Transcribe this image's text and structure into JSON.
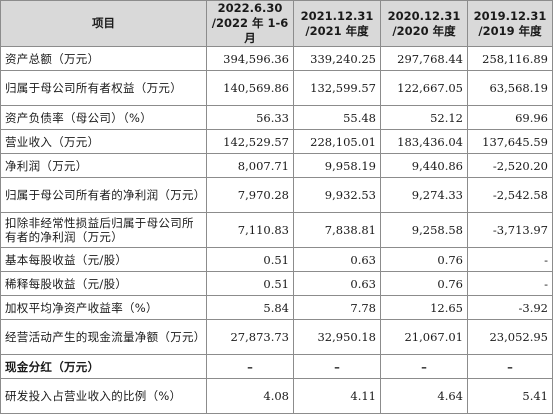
{
  "table": {
    "headers": [
      {
        "line1": "项目",
        "line2": ""
      },
      {
        "line1": "2022.6.30",
        "line2": "/2022 年 1-6 月"
      },
      {
        "line1": "2021.12.31",
        "line2": "/2021 年度"
      },
      {
        "line1": "2020.12.31",
        "line2": "/2020 年度"
      },
      {
        "line1": "2019.12.31",
        "line2": "/2019 年度"
      }
    ],
    "rows": [
      {
        "label": "资产总额（万元）",
        "values": [
          "394,596.36",
          "339,240.25",
          "297,768.44",
          "258,116.89"
        ]
      },
      {
        "label": "归属于母公司所有者权益（万元）",
        "values": [
          "140,569.86",
          "132,599.57",
          "122,667.05",
          "63,568.19"
        ]
      },
      {
        "label": "资产负债率（母公司）（%）",
        "values": [
          "56.33",
          "55.48",
          "52.12",
          "69.96"
        ]
      },
      {
        "label": "营业收入（万元）",
        "values": [
          "142,529.57",
          "228,105.01",
          "183,436.04",
          "137,645.59"
        ]
      },
      {
        "label": "净利润（万元）",
        "values": [
          "8,007.71",
          "9,958.19",
          "9,440.86",
          "-2,520.20"
        ]
      },
      {
        "label": "归属于母公司所有者的净利润（万元）",
        "values": [
          "7,970.28",
          "9,932.53",
          "9,274.33",
          "-2,542.58"
        ]
      },
      {
        "label": "扣除非经常性损益后归属于母公司所有者的净利润（万元）",
        "values": [
          "7,110.83",
          "7,838.81",
          "9,258.58",
          "-3,713.97"
        ]
      },
      {
        "label": "基本每股收益（元/股）",
        "values": [
          "0.51",
          "0.63",
          "0.76",
          "-"
        ]
      },
      {
        "label": "稀释每股收益（元/股）",
        "values": [
          "0.51",
          "0.63",
          "0.76",
          "-"
        ]
      },
      {
        "label": "加权平均净资产收益率（%）",
        "values": [
          "5.84",
          "7.78",
          "12.65",
          "-3.92"
        ]
      },
      {
        "label": "经营活动产生的现金流量净额（万元）",
        "values": [
          "27,873.73",
          "32,950.18",
          "21,067.01",
          "23,052.95"
        ]
      },
      {
        "label": "现金分红（万元）",
        "values": [
          "–",
          "–",
          "–",
          "–"
        ]
      },
      {
        "label": "研发投入占营业收入的比例（%）",
        "values": [
          "4.08",
          "4.11",
          "4.64",
          "5.41"
        ]
      }
    ]
  }
}
